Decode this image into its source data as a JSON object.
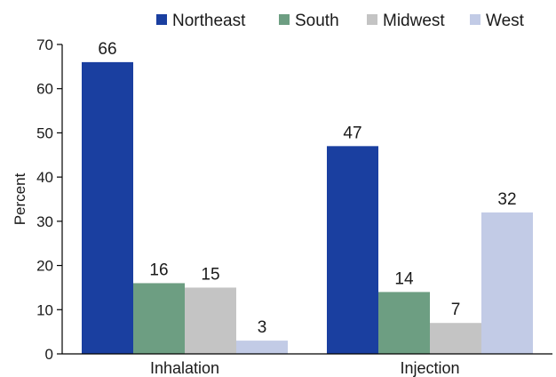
{
  "chart_data": {
    "type": "bar",
    "categories": [
      "Inhalation",
      "Injection"
    ],
    "series": [
      {
        "name": "Northeast",
        "values": [
          66,
          47
        ],
        "color": "#1a3fa0"
      },
      {
        "name": "South",
        "values": [
          16,
          14
        ],
        "color": "#6d9e82"
      },
      {
        "name": "Midwest",
        "values": [
          15,
          7
        ],
        "color": "#c4c4c4"
      },
      {
        "name": "West",
        "values": [
          3,
          32
        ],
        "color": "#c2cbe6"
      }
    ],
    "ylabel": "Percent",
    "ylim": [
      0,
      70
    ],
    "yticks": [
      0,
      10,
      20,
      30,
      40,
      50,
      60,
      70
    ],
    "grid": false,
    "legend_position": "top"
  }
}
